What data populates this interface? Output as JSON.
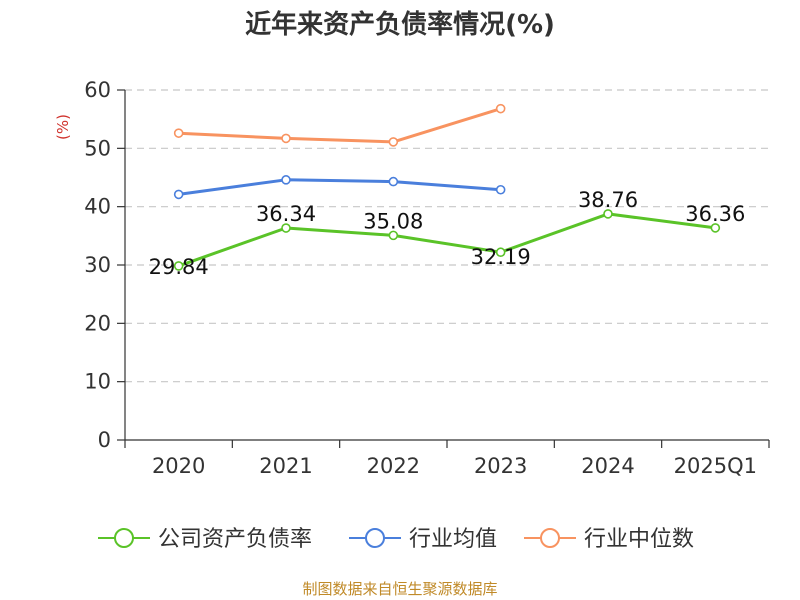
{
  "chart_data": {
    "type": "line",
    "title": "近年来资产负债率情况(%)",
    "ylabel": "(%)",
    "xlabel": "",
    "categories": [
      "2020",
      "2021",
      "2022",
      "2023",
      "2024",
      "2025Q1"
    ],
    "ylim": [
      0,
      60
    ],
    "yticks": [
      0,
      10,
      20,
      30,
      40,
      50,
      60
    ],
    "grid": true,
    "legend_position": "bottom",
    "series": [
      {
        "name": "公司资产负债率",
        "color": "#5ac328",
        "values": [
          29.84,
          36.34,
          35.08,
          32.19,
          38.76,
          36.36
        ],
        "show_labels": true
      },
      {
        "name": "行业均值",
        "color": "#4a7fdc",
        "values": [
          42.1,
          44.6,
          44.3,
          42.9,
          null,
          null
        ],
        "show_labels": false
      },
      {
        "name": "行业中位数",
        "color": "#f89360",
        "values": [
          52.6,
          51.7,
          51.1,
          56.8,
          null,
          null
        ],
        "show_labels": false
      }
    ]
  },
  "footer": {
    "source": "制图数据来自恒生聚源数据库"
  }
}
